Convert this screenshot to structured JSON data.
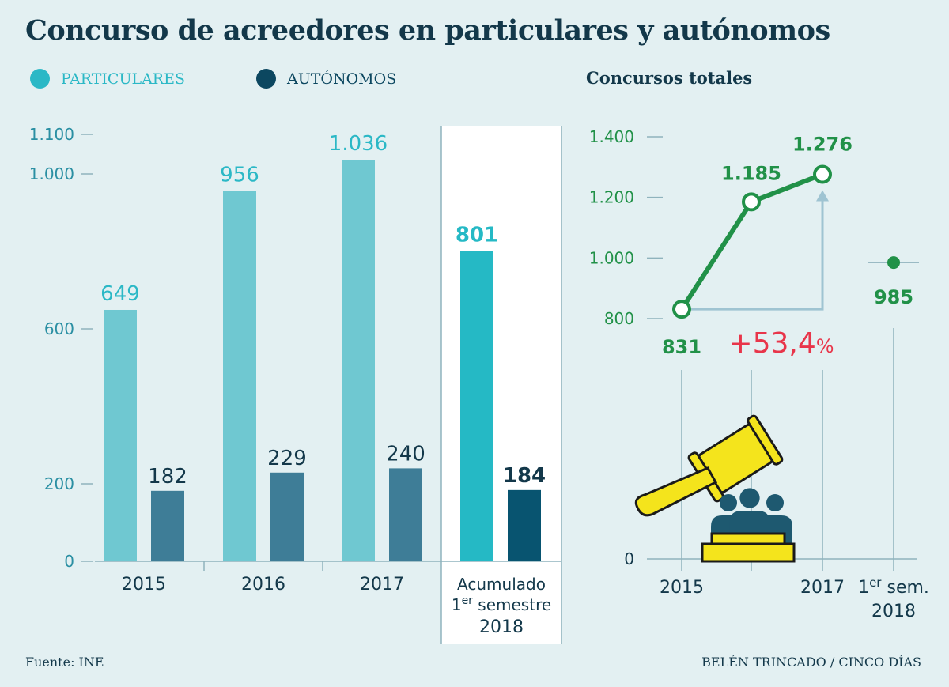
{
  "title": "Concurso de acreedores en particulares y autónomos",
  "legend": [
    {
      "label": "PARTICULARES",
      "color": "#2bb8c6"
    },
    {
      "label": "AUTÓNOMOS",
      "color": "#0c4760"
    }
  ],
  "subtitle_right": "Concursos totales",
  "footer": {
    "source": "Fuente: INE",
    "credit": "BELÉN TRINCADO / CINCO DÍAS"
  },
  "chart_data": [
    {
      "type": "bar",
      "categories": [
        "2015",
        "2016",
        "2017"
      ],
      "series": [
        {
          "name": "PARTICULARES",
          "values": [
            649,
            956,
            1036
          ],
          "labels": [
            "649",
            "956",
            "1.036"
          ]
        },
        {
          "name": "AUTÓNOMOS",
          "values": [
            182,
            229,
            240
          ],
          "labels": [
            "182",
            "229",
            "240"
          ]
        }
      ],
      "highlight": {
        "label_line1": "Acumulado",
        "label_line2_base": "1",
        "label_line2_sup": "er",
        "label_line2_rest": " semestre",
        "label_line3": "2018",
        "values": [
          801,
          184
        ],
        "labels": [
          "801",
          "184"
        ]
      },
      "y_ticks": [
        {
          "value": 0,
          "label": "0"
        },
        {
          "value": 200,
          "label": "200"
        },
        {
          "value": 600,
          "label": "600"
        },
        {
          "value": 1000,
          "label": "1.000"
        },
        {
          "value": 1100,
          "label": "1.100"
        }
      ],
      "y_axis_break": true,
      "colors": {
        "particulares": "#6fc8d1",
        "autonomos": "#3e7d97",
        "particulares_highlight": "#25b9c5",
        "autonomos_highlight": "#085470",
        "label_particulares": "#2bb8c6",
        "label_autonomos": "#13384a",
        "axis": "#8fb3bd",
        "tick_label_color": "#2a8fa3"
      }
    },
    {
      "type": "line",
      "series": [
        {
          "x": [
            "2015",
            "2016",
            "2017"
          ],
          "values": [
            831,
            1185,
            1276
          ],
          "labels": [
            "831",
            "1.185",
            "1.276"
          ]
        }
      ],
      "extra_point": {
        "x_base": "1",
        "x_sup": "er",
        "x_rest": " sem.",
        "x_line2": "2018",
        "value": 985,
        "label": "985"
      },
      "x_tick_labels": [
        "2015",
        "",
        "2017"
      ],
      "y_ticks": [
        {
          "value": 0,
          "label": "0"
        },
        {
          "value": 800,
          "label": "800"
        },
        {
          "value": 1000,
          "label": "1.000"
        },
        {
          "value": 1200,
          "label": "1.200"
        },
        {
          "value": 1400,
          "label": "1.400"
        }
      ],
      "y_axis_break": true,
      "annotation": {
        "number": "+53,4",
        "unit": "%",
        "color": "#e8354a"
      },
      "colors": {
        "line": "#219148",
        "label": "#219148",
        "arrow": "#9fc4d2"
      }
    }
  ],
  "icon": {
    "name": "gavel-and-people-icon",
    "gavel_color": "#f4e41c",
    "people_color": "#1e5970"
  }
}
